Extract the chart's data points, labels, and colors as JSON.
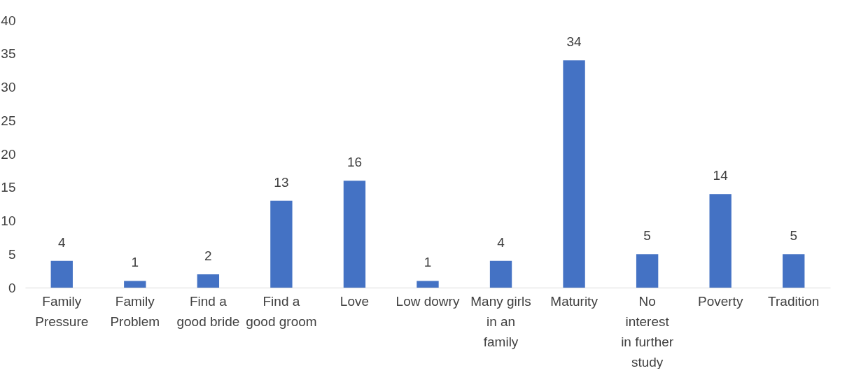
{
  "chart_data": {
    "type": "bar",
    "categories": [
      "Family Pressure",
      "Family Problem",
      "Find a good bride",
      "Find a good groom",
      "Love",
      "Low dowry",
      "Many girls in an family",
      "Maturity",
      "No interest in further study",
      "Poverty",
      "Tradition"
    ],
    "values": [
      4,
      1,
      2,
      13,
      16,
      1,
      4,
      34,
      5,
      14,
      5
    ],
    "color": "#4472c4",
    "ylim": [
      0,
      40
    ],
    "yticks": [
      0,
      5,
      10,
      15,
      20,
      25,
      30,
      35,
      40
    ],
    "grid": false,
    "data_labels": true
  }
}
